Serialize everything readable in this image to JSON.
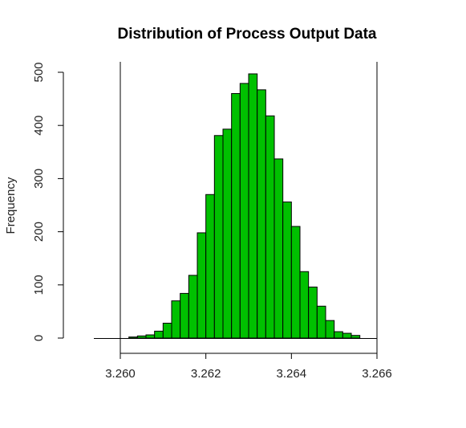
{
  "chart_data": {
    "type": "bar",
    "title": "Distribution of Process Output Data",
    "xlabel": "",
    "ylabel": "Frequency",
    "bar_color": "#00c000",
    "bar_edge_color": "#000000",
    "bin_width": 0.0002,
    "bin_starts": [
      3.2602,
      3.2604,
      3.2606,
      3.2608,
      3.261,
      3.2612,
      3.2614,
      3.2616,
      3.2618,
      3.262,
      3.2622,
      3.2624,
      3.2626,
      3.2628,
      3.263,
      3.2632,
      3.2634,
      3.2636,
      3.2638,
      3.264,
      3.2642,
      3.2644,
      3.2646,
      3.2648,
      3.265,
      3.2652,
      3.2654
    ],
    "values": [
      2,
      4,
      6,
      13,
      28,
      70,
      84,
      118,
      198,
      270,
      381,
      393,
      460,
      479,
      497,
      467,
      418,
      337,
      256,
      210,
      125,
      96,
      60,
      33,
      12,
      9,
      5
    ],
    "xlim": [
      3.26,
      3.266
    ],
    "ylim": [
      0,
      500
    ],
    "x_ticks": [
      "3.260",
      "3.262",
      "3.264",
      "3.266"
    ],
    "y_ticks": [
      "0",
      "100",
      "200",
      "300",
      "400",
      "500"
    ],
    "grid": false,
    "legend": "none"
  }
}
